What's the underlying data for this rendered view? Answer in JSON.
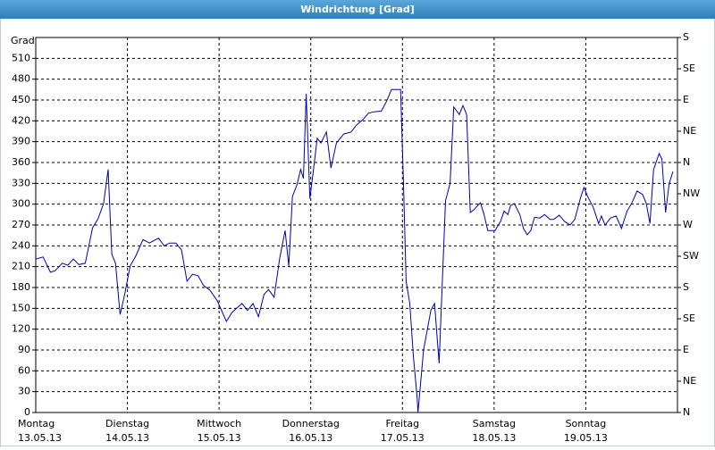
{
  "chart_data": {
    "type": "line",
    "title": "Windrichtung [Grad]",
    "y_label": "Grad",
    "xlim": [
      0,
      7
    ],
    "xticks": [
      {
        "value": 0,
        "label": [
          "Montag",
          "13.05.13"
        ]
      },
      {
        "value": 1,
        "label": [
          "Dienstag",
          "14.05.13"
        ]
      },
      {
        "value": 2,
        "label": [
          "Mittwoch",
          "15.05.13"
        ]
      },
      {
        "value": 3,
        "label": [
          "Donnerstag",
          "16.05.13"
        ]
      },
      {
        "value": 4,
        "label": [
          "Freitag",
          "17.05.13"
        ]
      },
      {
        "value": 5,
        "label": [
          "Samstag",
          "18.05.13"
        ]
      },
      {
        "value": 6,
        "label": [
          "Sonntag",
          "19.05.13"
        ]
      }
    ],
    "ylim": [
      0,
      540
    ],
    "yticks": [
      0,
      30,
      60,
      90,
      120,
      150,
      180,
      210,
      240,
      270,
      300,
      330,
      360,
      390,
      420,
      450,
      480,
      510
    ],
    "y2lim": [
      0,
      540
    ],
    "y2ticks": [
      {
        "value": 0,
        "label": "N"
      },
      {
        "value": 45,
        "label": "NE"
      },
      {
        "value": 90,
        "label": "E"
      },
      {
        "value": 135,
        "label": "SE"
      },
      {
        "value": 180,
        "label": "S"
      },
      {
        "value": 225,
        "label": "SW"
      },
      {
        "value": 270,
        "label": "W"
      },
      {
        "value": 315,
        "label": "NW"
      },
      {
        "value": 360,
        "label": "N"
      },
      {
        "value": 405,
        "label": "NE"
      },
      {
        "value": 450,
        "label": "E"
      },
      {
        "value": 495,
        "label": "SE"
      },
      {
        "value": 540,
        "label": "S"
      }
    ],
    "grid": true,
    "series": [
      {
        "color": "#0000b0",
        "x": [
          0,
          0.08,
          0.16,
          0.21,
          0.29,
          0.35,
          0.41,
          0.47,
          0.54,
          0.62,
          0.68,
          0.74,
          0.79,
          0.83,
          0.87,
          0.92,
          0.97,
          1.03,
          1.09,
          1.17,
          1.24,
          1.28,
          1.34,
          1.4,
          1.46,
          1.53,
          1.59,
          1.65,
          1.71,
          1.77,
          1.83,
          1.9,
          1.98,
          2.08,
          2.14,
          2.19,
          2.25,
          2.31,
          2.37,
          2.43,
          2.49,
          2.54,
          2.6,
          2.66,
          2.72,
          2.76,
          2.8,
          2.85,
          2.89,
          2.92,
          2.95,
          2.99,
          3.03,
          3.07,
          3.11,
          3.17,
          3.22,
          3.28,
          3.36,
          3.44,
          3.5,
          3.57,
          3.63,
          3.69,
          3.77,
          3.83,
          3.88,
          3.94,
          3.98,
          4.01,
          4.04,
          4.08,
          4.12,
          4.16,
          4.17,
          4.23,
          4.31,
          4.35,
          4.4,
          4.47,
          4.52,
          4.56,
          4.62,
          4.66,
          4.7,
          4.74,
          4.78,
          4.82,
          4.85,
          4.89,
          4.93,
          5.01,
          5.07,
          5.11,
          5.15,
          5.18,
          5.22,
          5.28,
          5.32,
          5.36,
          5.4,
          5.44,
          5.5,
          5.55,
          5.61,
          5.65,
          5.71,
          5.77,
          5.83,
          5.88,
          5.94,
          5.98,
          6.02,
          6.08,
          6.14,
          6.17,
          6.21,
          6.27,
          6.33,
          6.39,
          6.45,
          6.5,
          6.56,
          6.62,
          6.66,
          6.7,
          6.74,
          6.8,
          6.83,
          6.87,
          6.91,
          6.95
        ],
        "values": [
          221,
          224,
          202,
          204,
          215,
          212,
          221,
          213,
          215,
          266,
          279,
          301,
          350,
          228,
          215,
          141,
          170,
          211,
          225,
          249,
          244,
          247,
          251,
          240,
          244,
          244,
          234,
          189,
          199,
          197,
          183,
          176,
          161,
          131,
          144,
          150,
          157,
          147,
          157,
          138,
          170,
          177,
          166,
          221,
          262,
          211,
          311,
          328,
          350,
          337,
          459,
          308,
          350,
          395,
          388,
          404,
          352,
          388,
          401,
          404,
          414,
          422,
          431,
          433,
          434,
          449,
          465,
          465,
          465,
          337,
          189,
          157,
          80,
          22,
          0,
          90,
          147,
          157,
          71,
          305,
          330,
          440,
          429,
          442,
          429,
          288,
          292,
          298,
          302,
          285,
          262,
          262,
          275,
          290,
          285,
          298,
          301,
          285,
          265,
          256,
          262,
          281,
          280,
          285,
          278,
          278,
          284,
          275,
          270,
          278,
          308,
          324,
          311,
          296,
          272,
          283,
          270,
          280,
          283,
          265,
          290,
          301,
          319,
          314,
          301,
          272,
          350,
          373,
          365,
          288,
          330,
          347
        ]
      }
    ]
  }
}
